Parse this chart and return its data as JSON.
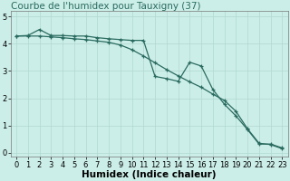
{
  "title": "Courbe de l'humidex pour Tauxigny (37)",
  "xlabel": "Humidex (Indice chaleur)",
  "background_color": "#cceee8",
  "grid_color": "#b0d8d0",
  "line_color": "#2a6b60",
  "xlim": [
    -0.5,
    23.5
  ],
  "ylim": [
    -0.15,
    5.2
  ],
  "yticks": [
    0,
    1,
    2,
    3,
    4,
    5
  ],
  "xticks": [
    0,
    1,
    2,
    3,
    4,
    5,
    6,
    7,
    8,
    9,
    10,
    11,
    12,
    13,
    14,
    15,
    16,
    17,
    18,
    19,
    20,
    21,
    22,
    23
  ],
  "series1_x": [
    0,
    1,
    2,
    3,
    4,
    5,
    6,
    7,
    8,
    9,
    10,
    11,
    12,
    13,
    14,
    15,
    16,
    17,
    18,
    19,
    20,
    21,
    22,
    23
  ],
  "series1_y": [
    4.28,
    4.3,
    4.52,
    4.3,
    4.3,
    4.28,
    4.28,
    4.22,
    4.18,
    4.15,
    4.12,
    4.12,
    2.8,
    2.72,
    2.62,
    3.32,
    3.18,
    2.32,
    1.78,
    1.35,
    0.85,
    0.32,
    0.32,
    0.18
  ],
  "series2_x": [
    0,
    1,
    2,
    3,
    4,
    5,
    6,
    7,
    8,
    9,
    10,
    11,
    12,
    13,
    14,
    15,
    16,
    17,
    18,
    19,
    20,
    21,
    22,
    23
  ],
  "series2_y": [
    4.28,
    4.28,
    4.28,
    4.25,
    4.22,
    4.18,
    4.15,
    4.1,
    4.05,
    3.95,
    3.78,
    3.55,
    3.3,
    3.05,
    2.82,
    2.6,
    2.4,
    2.15,
    1.92,
    1.52,
    0.88,
    0.35,
    0.3,
    0.15
  ],
  "title_fontsize": 7.5,
  "axis_fontsize": 7.5,
  "tick_fontsize": 6.0
}
